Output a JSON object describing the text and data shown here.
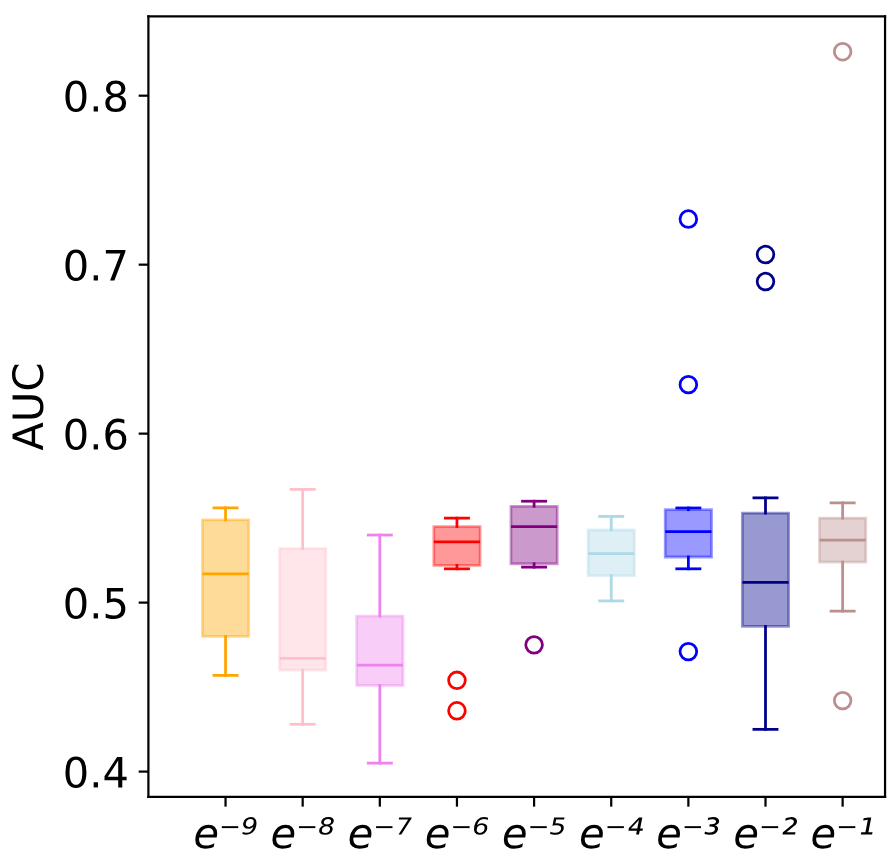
{
  "chart_data": {
    "type": "box",
    "ylabel": "AUC",
    "categories": [
      "e⁻⁹",
      "e⁻⁸",
      "e⁻⁷",
      "e⁻⁶",
      "e⁻⁵",
      "e⁻⁴",
      "e⁻³",
      "e⁻²",
      "e⁻¹"
    ],
    "colors": [
      "#ffa500",
      "#ffc0cb",
      "#ee82ee",
      "#ff0000",
      "#800080",
      "#add8e6",
      "#0000ff",
      "#00008b",
      "#bc8f8f"
    ],
    "boxes": [
      {
        "low": 0.457,
        "q1": 0.48,
        "median": 0.517,
        "q3": 0.549,
        "high": 0.556
      },
      {
        "low": 0.428,
        "q1": 0.46,
        "median": 0.467,
        "q3": 0.532,
        "high": 0.567
      },
      {
        "low": 0.405,
        "q1": 0.451,
        "median": 0.463,
        "q3": 0.492,
        "high": 0.54
      },
      {
        "low": 0.52,
        "q1": 0.522,
        "median": 0.536,
        "q3": 0.545,
        "high": 0.55,
        "outliers": [
          0.454,
          0.436
        ]
      },
      {
        "low": 0.521,
        "q1": 0.523,
        "median": 0.545,
        "q3": 0.557,
        "high": 0.56,
        "outliers": [
          0.475
        ]
      },
      {
        "low": 0.501,
        "q1": 0.516,
        "median": 0.529,
        "q3": 0.543,
        "high": 0.551
      },
      {
        "low": 0.52,
        "q1": 0.527,
        "median": 0.542,
        "q3": 0.555,
        "high": 0.556,
        "outliers": [
          0.727,
          0.629,
          0.471
        ]
      },
      {
        "low": 0.425,
        "q1": 0.486,
        "median": 0.512,
        "q3": 0.553,
        "high": 0.562,
        "outliers": [
          0.706,
          0.69
        ]
      },
      {
        "low": 0.495,
        "q1": 0.524,
        "median": 0.537,
        "q3": 0.55,
        "high": 0.559,
        "outliers": [
          0.826,
          0.442
        ]
      }
    ],
    "ylim": [
      0.385,
      0.847
    ],
    "yticks": [
      0.4,
      0.5,
      0.6,
      0.7,
      0.8
    ],
    "grid": false
  }
}
